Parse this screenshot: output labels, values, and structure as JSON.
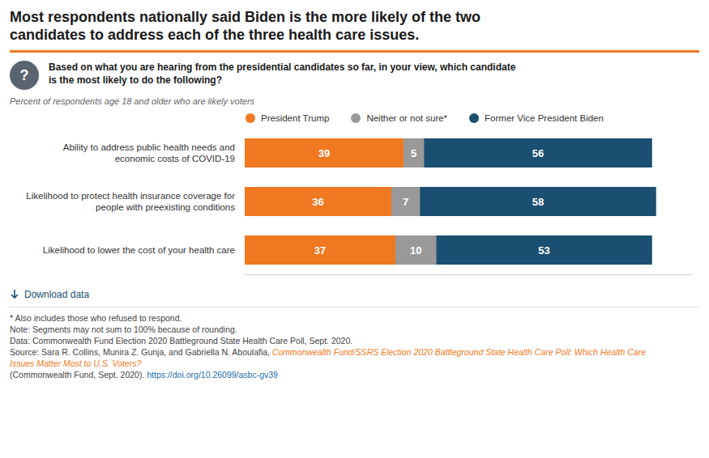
{
  "chart_data": {
    "type": "bar",
    "orientation": "horizontal",
    "stacked": true,
    "data_labels": true,
    "title": "Most respondents nationally said Biden is the more likely of the two\ncandidates to address each of the three health care issues.",
    "subtitle": "Percent of respondents age 18 and older who are likely voters",
    "categories": [
      "Ability to address public health needs and\neconomic costs of COVID-19",
      "Likelihood to protect health insurance coverage for\npeople with preexisting conditions",
      "Likelihood to lower the cost of your health care"
    ],
    "series": [
      {
        "name": "President Trump",
        "color": "#F07820",
        "values": [
          39,
          36,
          37
        ]
      },
      {
        "name": "Neither or not sure*",
        "color": "#999999",
        "values": [
          5,
          7,
          10
        ]
      },
      {
        "name": "Former Vice President Biden",
        "color": "#1B4F72",
        "values": [
          56,
          58,
          53
        ]
      }
    ],
    "xlim": [
      0,
      110
    ],
    "tick_labels": "y",
    "grid": false,
    "legend": "top",
    "annotations": [
      "?",
      "Based on what you are hearing from the presidential candidates so far, in your view, which candidate\nis the most likely to do the following?",
      "Download data",
      "* Also includes those who refused to respond.",
      "Note: Segments may not sum to 100% because of rounding.",
      "Data: Commonwealth Fund Election 2020 Battleground State Health Care Poll, Sept. 2020.",
      "Source: Sara R. Collins, Munira Z. Gunja, and Gabriella N. Aboulafia, ",
      "Commonwealth Fund/SSRS Election 2020 Battleground State Health Care Poll: Which Health Care\nIssues Matter Most to U.S. Voters?",
      "(Commonwealth Fund, Sept. 2020). ",
      "https://doi.org/10.26099/asbc-gv39"
    ]
  }
}
